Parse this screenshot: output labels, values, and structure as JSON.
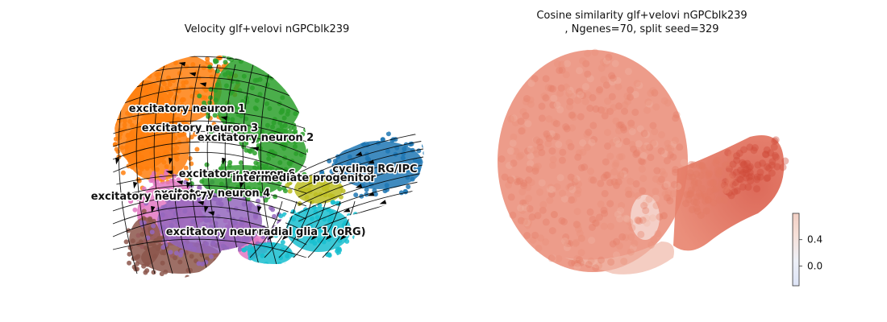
{
  "panels": {
    "left": {
      "title": "Velocity glf+velovi nGPCblk239"
    },
    "right": {
      "title_line1": "Cosine similarity glf+velovi nGPCblk239",
      "title_line2": ", Ngenes=70, split seed=329"
    }
  },
  "colors": {
    "excitatory neuron 1": "#ff7f0e",
    "excitatory neuron 2": "#2ca02c",
    "excitatory neuron 3": "#ff7f0e",
    "excitatory neuron 4": "#9467bd",
    "excitatory neuron 5": "#8c564b",
    "excitatory neuron 6": "#2ca02c",
    "excitatory neuron 7": "#e377c2",
    "intermediate progenitor": "#bcbd22",
    "cycling RG/IPC": "#1f77b4",
    "radial glia 1 (oRG)": "#17becf",
    "cosine_low": "#f5ddd5",
    "cosine_high": "#cc3b2e",
    "streamline": "#000000"
  },
  "chart_data": [
    {
      "type": "scatter",
      "subtype": "umap-velocity-stream",
      "title": "Velocity glf+velovi nGPCblk239",
      "axes_visible": false,
      "clusters": [
        {
          "name": "excitatory neuron 1",
          "label_text": "excitatory neuron 1"
        },
        {
          "name": "excitatory neuron 3",
          "label_text": "excitatory neuron 3"
        },
        {
          "name": "excitatory neuron 2",
          "label_text": "excitatory neuron 2"
        },
        {
          "name": "excitatory neuron 6",
          "label_text": "excitatory neuron 6"
        },
        {
          "name": "cycling RG/IPC",
          "label_text": "cycling RG/IPC"
        },
        {
          "name": "intermediate progenitor",
          "label_text": "intermediate progenitor"
        },
        {
          "name": "excitatory neuron 4",
          "label_text": "excitatory neuron 4"
        },
        {
          "name": "excitatory neuron 7",
          "label_text": "excitatory neuron 7"
        },
        {
          "name": "excitatory neuron 5",
          "label_text": "excitatory neuron 5"
        },
        {
          "name": "radial glia 1 (oRG)",
          "label_text": "radial glia 1 (oRG)"
        }
      ]
    },
    {
      "type": "scatter",
      "subtype": "umap-continuous",
      "title": "Cosine similarity glf+velovi nGPCblk239\n, Ngenes=70, split seed=329",
      "axes_visible": false,
      "colorbar": {
        "ticks": [
          0.0,
          0.4
        ],
        "tick_labels": [
          "0.0",
          "0.4"
        ],
        "range": [
          -0.3,
          0.8
        ],
        "colormap": "coolwarm"
      }
    }
  ]
}
